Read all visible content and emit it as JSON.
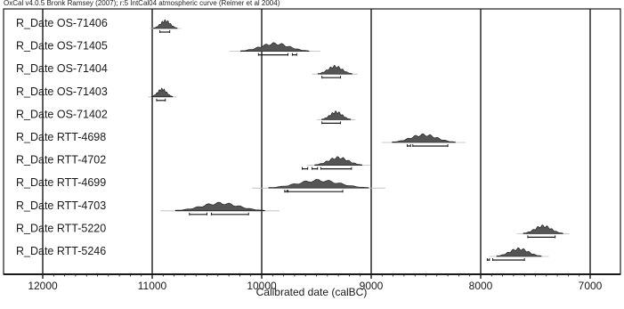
{
  "header": {
    "caption": "OxCal v4.0.5 Bronk Ramsey (2007); r:5 IntCal04 atmospheric curve (Reimer et al 2004)"
  },
  "chart_data": {
    "type": "area",
    "xlabel": "Calibrated date (calBC)",
    "xlim": [
      12200,
      6800
    ],
    "x_reversed": true,
    "xticks": [
      12000,
      11000,
      10000,
      9000,
      8000,
      7000
    ],
    "grid": "vertical lines at tick positions",
    "ink_color": "#1a1a1a",
    "shade_color": "#555555",
    "series": [
      {
        "name": "R_Date OS-71406",
        "peak": 10880,
        "spread": 45,
        "range_68": [
          [
            10930,
            10840
          ]
        ]
      },
      {
        "name": "R_Date OS-71405",
        "peak": 9880,
        "spread": 130,
        "range_68": [
          [
            10030,
            9760
          ],
          [
            9720,
            9680
          ]
        ]
      },
      {
        "name": "R_Date OS-71404",
        "peak": 9330,
        "spread": 65,
        "range_68": [
          [
            9450,
            9280
          ]
        ]
      },
      {
        "name": "R_Date OS-71403",
        "peak": 10910,
        "spread": 40,
        "range_68": [
          [
            10960,
            10880
          ]
        ]
      },
      {
        "name": "R_Date OS-71402",
        "peak": 9320,
        "spread": 55,
        "range_68": [
          [
            9450,
            9280
          ]
        ]
      },
      {
        "name": "R_Date RTT-4698",
        "peak": 8520,
        "spread": 120,
        "range_68": [
          [
            8670,
            8640
          ],
          [
            8620,
            8300
          ]
        ]
      },
      {
        "name": "R_Date RTT-4702",
        "peak": 9300,
        "spread": 90,
        "range_68": [
          [
            9630,
            9580
          ],
          [
            9540,
            9490
          ],
          [
            9460,
            9180
          ]
        ]
      },
      {
        "name": "R_Date RTT-4699",
        "peak": 9480,
        "spread": 190,
        "range_68": [
          [
            9790,
            9770
          ],
          [
            9760,
            9260
          ]
        ]
      },
      {
        "name": "R_Date RTT-4703",
        "peak": 10380,
        "spread": 170,
        "range_68": [
          [
            10660,
            10500
          ],
          [
            10460,
            10120
          ]
        ]
      },
      {
        "name": "R_Date RTT-5220",
        "peak": 7430,
        "spread": 75,
        "range_68": [
          [
            7570,
            7320
          ]
        ]
      },
      {
        "name": "R_Date RTT-5246",
        "peak": 7650,
        "spread": 85,
        "range_68": [
          [
            7940,
            7920
          ],
          [
            7890,
            7600
          ]
        ]
      }
    ]
  }
}
